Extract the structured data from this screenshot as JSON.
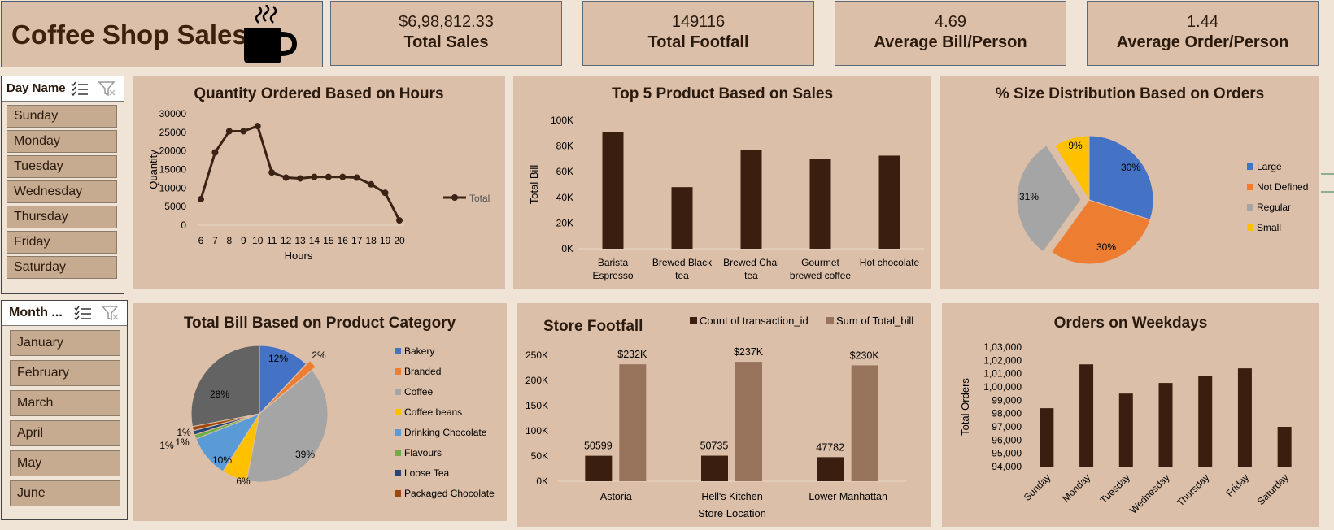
{
  "header": {
    "title": "Coffee Shop Sales",
    "logo_icon": "coffee-cup-icon"
  },
  "kpis": [
    {
      "value": "$6,98,812.33",
      "label": "Total Sales"
    },
    {
      "value": "149116",
      "label": "Total Footfall"
    },
    {
      "value": "4.69",
      "label": "Average Bill/Person"
    },
    {
      "value": "1.44",
      "label": "Average Order/Person"
    }
  ],
  "slicers": {
    "day": {
      "label": "Day Name",
      "items": [
        "Sunday",
        "Monday",
        "Tuesday",
        "Wednesday",
        "Thursday",
        "Friday",
        "Saturday"
      ]
    },
    "month": {
      "label": "Month ...",
      "items": [
        "January",
        "February",
        "March",
        "April",
        "May",
        "June"
      ]
    }
  },
  "chart_data": [
    {
      "type": "line",
      "title": "Quantity Ordered Based on Hours",
      "xlabel": "Hours",
      "ylabel": "Quantity",
      "x": [
        6,
        7,
        8,
        9,
        10,
        11,
        12,
        13,
        14,
        15,
        16,
        17,
        18,
        19,
        20
      ],
      "yticks": [
        "0",
        "5000",
        "10000",
        "15000",
        "20000",
        "25000",
        "30000"
      ],
      "ylim": [
        0,
        30000
      ],
      "series": [
        {
          "name": "Total",
          "values": [
            7000,
            19600,
            25300,
            25300,
            26700,
            14200,
            12800,
            12600,
            13000,
            13000,
            13000,
            12800,
            11000,
            8700,
            1300
          ],
          "color": "#3a2315"
        }
      ],
      "legend": "right"
    },
    {
      "type": "bar",
      "title": "Top 5 Product Based on Sales",
      "xlabel": "",
      "ylabel": "Total Bill",
      "categories": [
        "Barista Espresso",
        "Brewed Black tea",
        "Brewed Chai tea",
        "Gourmet brewed coffee",
        "Hot chocolate"
      ],
      "category_lines": [
        [
          "Barista",
          "Espresso"
        ],
        [
          "Brewed Black",
          "tea"
        ],
        [
          "Brewed Chai",
          "tea"
        ],
        [
          "Gourmet",
          "brewed coffee"
        ],
        [
          "Hot chocolate",
          ""
        ]
      ],
      "values": [
        91000,
        48000,
        77000,
        70000,
        72500
      ],
      "yticks": [
        "0K",
        "20K",
        "40K",
        "60K",
        "80K",
        "100K"
      ],
      "ylim": [
        0,
        100000
      ],
      "color": "#3a1f10"
    },
    {
      "type": "pie",
      "title": "% Size Distribution Based on Orders",
      "slices": [
        {
          "name": "Large",
          "value": 30,
          "label": "30%",
          "color": "#4472c4"
        },
        {
          "name": "Not Defined",
          "value": 30,
          "label": "30%",
          "color": "#ed7d31"
        },
        {
          "name": "Regular",
          "value": 31,
          "label": "31%",
          "color": "#a5a5a5"
        },
        {
          "name": "Small",
          "value": 9,
          "label": "9%",
          "color": "#ffc000"
        }
      ],
      "legend": "right"
    },
    {
      "type": "pie",
      "title": "Total Bill Based on Product Category",
      "slices": [
        {
          "name": "Bakery",
          "value": 12,
          "label": "12%",
          "color": "#4472c4"
        },
        {
          "name": "Branded",
          "value": 2,
          "label": "2%",
          "color": "#ed7d31"
        },
        {
          "name": "Coffee",
          "value": 39,
          "label": "39%",
          "color": "#a5a5a5"
        },
        {
          "name": "Coffee beans",
          "value": 6,
          "label": "6%",
          "color": "#ffc000"
        },
        {
          "name": "Drinking Chocolate",
          "value": 10,
          "label": "10%",
          "color": "#5b9bd5"
        },
        {
          "name": "Flavours",
          "value": 1,
          "label": "1%",
          "color": "#70ad47"
        },
        {
          "name": "Loose Tea",
          "value": 1,
          "label": "1%",
          "color": "#264478"
        },
        {
          "name": "Packaged Chocolate",
          "value": 1,
          "label": "1%",
          "color": "#9e480e"
        },
        {
          "name": "",
          "value": 28,
          "label": "28%",
          "color": "#636363"
        }
      ],
      "legend": "right"
    },
    {
      "type": "bar",
      "title": "Store Footfall",
      "xlabel": "Store Location",
      "ylabel": "",
      "categories": [
        "Astoria",
        "Hell's Kitchen",
        "Lower Manhattan"
      ],
      "series": [
        {
          "name": "Count of transaction_id",
          "values": [
            50599,
            50735,
            47782
          ],
          "labels": [
            "50599",
            "50735",
            "47782"
          ],
          "color": "#3a1f10"
        },
        {
          "name": "Sum of Total_bill",
          "values": [
            232000,
            237000,
            230000
          ],
          "labels": [
            "$232K",
            "$237K",
            "$230K"
          ],
          "color": "#97735b"
        }
      ],
      "yticks": [
        "0K",
        "50K",
        "100K",
        "150K",
        "200K",
        "250K"
      ],
      "ylim": [
        0,
        250000
      ],
      "legend": "top"
    },
    {
      "type": "bar",
      "title": "Orders on Weekdays",
      "xlabel": "",
      "ylabel": "Total Orders",
      "categories": [
        "Sunday",
        "Monday",
        "Tuesday",
        "Wednesday",
        "Thursday",
        "Friday",
        "Saturday"
      ],
      "values": [
        98400,
        101700,
        99500,
        100300,
        100800,
        101400,
        97000
      ],
      "yticks": [
        "94,000",
        "95,000",
        "96,000",
        "97,000",
        "98,000",
        "99,000",
        "1,00,000",
        "1,01,000",
        "1,02,000",
        "1,03,000"
      ],
      "ylim": [
        94000,
        103000
      ],
      "color": "#3a1f10"
    }
  ]
}
